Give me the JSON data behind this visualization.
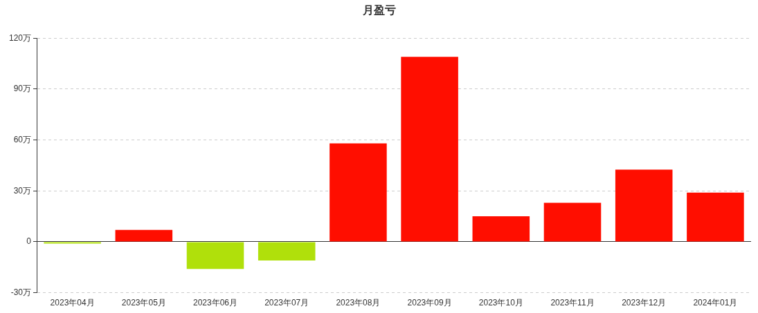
{
  "chart_data": {
    "type": "bar",
    "title": "月盈亏",
    "categories": [
      "2023年04月",
      "2023年05月",
      "2023年06月",
      "2023年07月",
      "2023年08月",
      "2023年09月",
      "2023年10月",
      "2023年11月",
      "2023年12月",
      "2024年01月"
    ],
    "values": [
      -1,
      7,
      -16,
      -11,
      58,
      109,
      15,
      23,
      42.5,
      29
    ],
    "colors": [
      "#b0e00b",
      "#ff0e00",
      "#b0e00b",
      "#b0e00b",
      "#ff0e00",
      "#ff0e00",
      "#ff0e00",
      "#ff0e00",
      "#ff0e00",
      "#ff0e00"
    ],
    "ylim": [
      -30,
      120
    ],
    "yticks": [
      {
        "value": -30,
        "label": "-30万"
      },
      {
        "value": 0,
        "label": "0"
      },
      {
        "value": 30,
        "label": "30万"
      },
      {
        "value": 60,
        "label": "60万"
      },
      {
        "value": 90,
        "label": "90万"
      },
      {
        "value": 120,
        "label": "120万"
      }
    ],
    "grid": "y"
  }
}
